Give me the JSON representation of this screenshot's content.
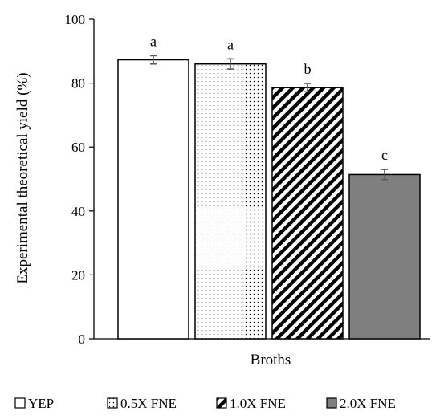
{
  "chart_data": {
    "type": "bar",
    "title": "",
    "xlabel": "Broths",
    "ylabel": "Experimental theoretical yield (%)",
    "ylim": [
      0,
      100
    ],
    "yticks": [
      0,
      20,
      40,
      60,
      80,
      100
    ],
    "grid": false,
    "legend_position": "bottom",
    "series": [
      {
        "name": "YEP",
        "value": 87.3,
        "error": 1.3,
        "letter": "a",
        "pattern": "solid-white"
      },
      {
        "name": "0.5X FNE",
        "value": 86.0,
        "error": 1.6,
        "letter": "a",
        "pattern": "dotted"
      },
      {
        "name": "1.0X FNE",
        "value": 78.6,
        "error": 1.3,
        "letter": "b",
        "pattern": "diagonal-stripes"
      },
      {
        "name": "2.0X FNE",
        "value": 51.4,
        "error": 1.6,
        "letter": "c",
        "pattern": "solid-gray"
      }
    ],
    "colors": {
      "white_bar": "#ffffff",
      "gray_bar": "#7f7f7f",
      "outline": "#000000",
      "error_bar": "#595959"
    }
  }
}
